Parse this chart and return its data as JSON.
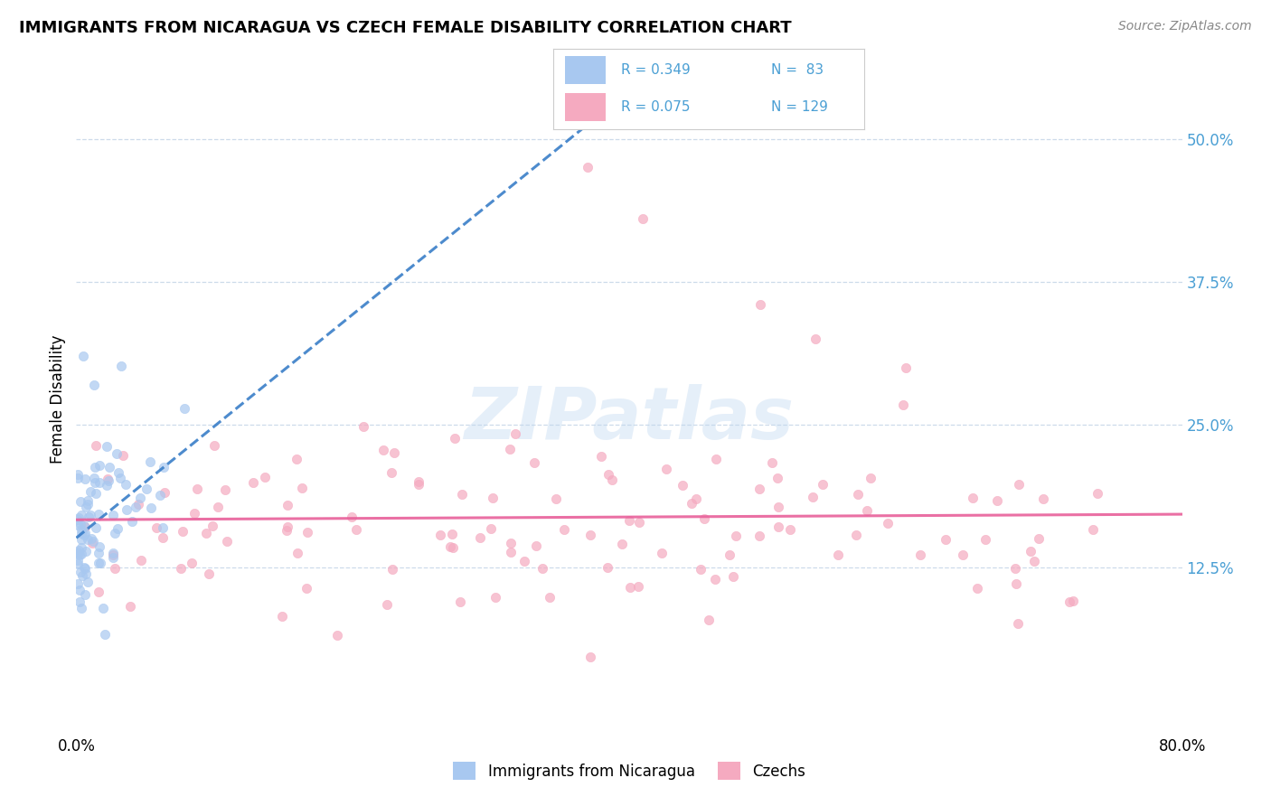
{
  "title": "IMMIGRANTS FROM NICARAGUA VS CZECH FEMALE DISABILITY CORRELATION CHART",
  "source": "Source: ZipAtlas.com",
  "ylabel": "Female Disability",
  "xlim": [
    0.0,
    0.8
  ],
  "ylim": [
    -0.02,
    0.565
  ],
  "ytick_values": [
    0.125,
    0.25,
    0.375,
    0.5
  ],
  "blue_R": 0.349,
  "pink_R": 0.075,
  "blue_N": 83,
  "pink_N": 129,
  "blue_color": "#a8c8f0",
  "pink_color": "#f5aac0",
  "blue_line_color": "#3a7ec8",
  "pink_line_color": "#e8609a",
  "dot_size": 55,
  "dot_alpha": 0.7,
  "legend_blue_label": "Immigrants from Nicaragua",
  "legend_pink_label": "Czechs",
  "watermark_text": "ZIPatlas",
  "watermark_color": "#c0d8f0",
  "watermark_alpha": 0.4,
  "watermark_fontsize": 58,
  "grid_color": "#c8d8e8",
  "title_fontsize": 13,
  "source_fontsize": 10,
  "tick_color": "#4a9fd4",
  "blue_line_style": "--",
  "pink_line_style": "-"
}
